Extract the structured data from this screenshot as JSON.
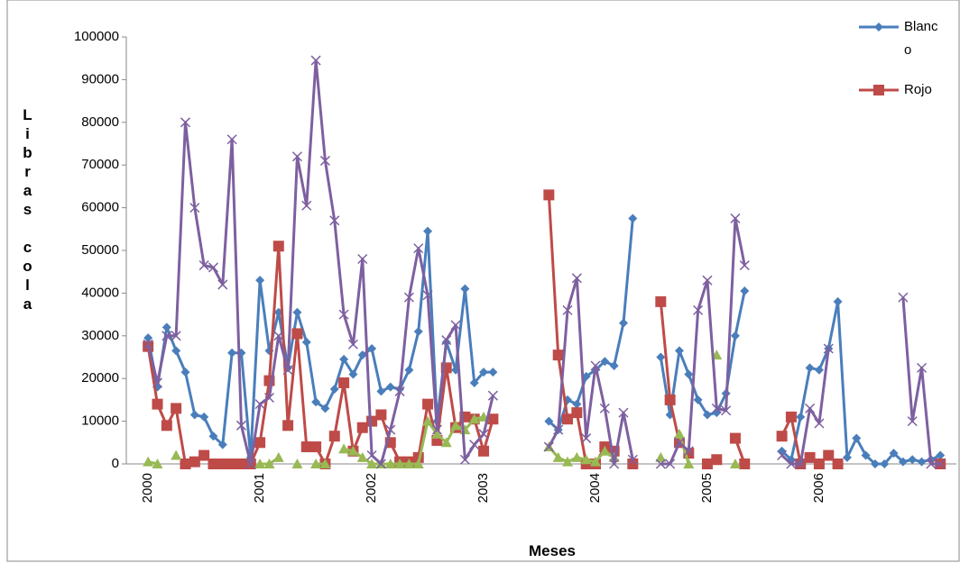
{
  "chart_data": {
    "type": "line",
    "y_label": "Libras cola",
    "x_label": "Meses",
    "ylim": [
      0,
      100000
    ],
    "yticks": [
      0,
      10000,
      20000,
      30000,
      40000,
      50000,
      60000,
      70000,
      80000,
      90000,
      100000
    ],
    "categories": [
      "2000",
      null,
      null,
      null,
      null,
      null,
      null,
      null,
      null,
      null,
      null,
      null,
      "2001",
      null,
      null,
      null,
      null,
      null,
      null,
      null,
      null,
      null,
      null,
      null,
      "2002",
      null,
      null,
      null,
      null,
      null,
      null,
      null,
      null,
      null,
      null,
      null,
      "2003",
      null,
      null,
      null,
      null,
      null,
      null,
      null,
      null,
      null,
      null,
      null,
      "2004",
      null,
      null,
      null,
      null,
      null,
      null,
      null,
      null,
      null,
      null,
      null,
      "2005",
      null,
      null,
      null,
      null,
      null,
      null,
      null,
      null,
      null,
      null,
      null,
      "2006",
      null,
      null,
      null,
      null,
      null,
      null,
      null,
      null,
      null,
      null,
      null,
      null,
      null
    ],
    "series": [
      {
        "name": "Blanco",
        "color": "#4a7ebb",
        "marker": "diamond",
        "values": [
          29500,
          18000,
          32000,
          26500,
          21500,
          11500,
          11000,
          6500,
          4500,
          26000,
          26000,
          1500,
          43000,
          26500,
          35500,
          22500,
          35500,
          28500,
          14500,
          13000,
          17500,
          24500,
          21000,
          25500,
          27000,
          17000,
          18000,
          17500,
          22000,
          31000,
          54500,
          10000,
          28500,
          22000,
          41000,
          19000,
          21500,
          21500,
          null,
          null,
          null,
          null,
          null,
          10000,
          8000,
          15000,
          14000,
          20500,
          22000,
          24000,
          23000,
          33000,
          57500,
          null,
          null,
          25000,
          11500,
          26500,
          21000,
          15000,
          11500,
          12000,
          16500,
          30000,
          40500,
          null,
          null,
          null,
          3000,
          1000,
          11000,
          22500,
          22000,
          27000,
          38000,
          1500,
          6000,
          2000,
          0,
          0,
          2500,
          500,
          1000,
          500,
          1000,
          2000
        ]
      },
      {
        "name": "Rojo",
        "color": "#be4b48",
        "marker": "square",
        "values": [
          27500,
          14000,
          9000,
          13000,
          0,
          500,
          2000,
          0,
          0,
          0,
          0,
          0,
          5000,
          19500,
          51000,
          9000,
          30500,
          4000,
          4000,
          0,
          6500,
          19000,
          3000,
          8500,
          10000,
          11500,
          5000,
          500,
          500,
          1500,
          14000,
          5500,
          22500,
          8500,
          11000,
          10500,
          3000,
          10500,
          null,
          null,
          null,
          null,
          null,
          63000,
          25500,
          10500,
          12000,
          0,
          0,
          4000,
          3000,
          null,
          0,
          null,
          null,
          38000,
          15000,
          5000,
          2500,
          null,
          0,
          1000,
          null,
          6000,
          0,
          null,
          null,
          null,
          6500,
          11000,
          0,
          1500,
          0,
          2000,
          0,
          null,
          null,
          null,
          null,
          null,
          null,
          null,
          null,
          null,
          null,
          0
        ]
      },
      {
        "color": "#98b954",
        "marker": "triangle",
        "values": [
          500,
          0,
          null,
          2000,
          null,
          null,
          null,
          null,
          null,
          null,
          null,
          null,
          0,
          0,
          1500,
          null,
          0,
          null,
          0,
          0,
          null,
          3500,
          3000,
          1500,
          0,
          0,
          0,
          0,
          0,
          0,
          10000,
          7000,
          5000,
          9000,
          8000,
          10500,
          11000,
          null,
          null,
          null,
          null,
          null,
          null,
          4000,
          1500,
          500,
          1500,
          1000,
          500,
          3000,
          1500,
          null,
          null,
          null,
          null,
          1500,
          null,
          7000,
          0,
          null,
          null,
          25500,
          null,
          0,
          null,
          null,
          null,
          null,
          null,
          null,
          null,
          null,
          null,
          null,
          null,
          null,
          null,
          null,
          null,
          null,
          null,
          null,
          null,
          null,
          null,
          null
        ]
      },
      {
        "color": "#7d60a0",
        "marker": "cross",
        "values": [
          28000,
          19000,
          30000,
          30000,
          80000,
          60000,
          46500,
          46000,
          42000,
          76000,
          9000,
          0,
          14000,
          15500,
          30000,
          22000,
          72000,
          60500,
          94500,
          71000,
          57000,
          35000,
          28000,
          48000,
          2000,
          0,
          8000,
          17000,
          39000,
          50500,
          39500,
          8000,
          29000,
          32500,
          1000,
          4500,
          7000,
          16000,
          null,
          null,
          null,
          null,
          null,
          4000,
          8000,
          36000,
          43500,
          6000,
          23000,
          13000,
          0,
          12000,
          1000,
          null,
          null,
          0,
          0,
          5000,
          3000,
          36000,
          43000,
          13000,
          12500,
          57500,
          46500,
          null,
          null,
          null,
          2000,
          0,
          0,
          13000,
          9500,
          27000,
          null,
          null,
          null,
          null,
          null,
          null,
          null,
          39000,
          10000,
          22500,
          0,
          0
        ]
      }
    ]
  }
}
